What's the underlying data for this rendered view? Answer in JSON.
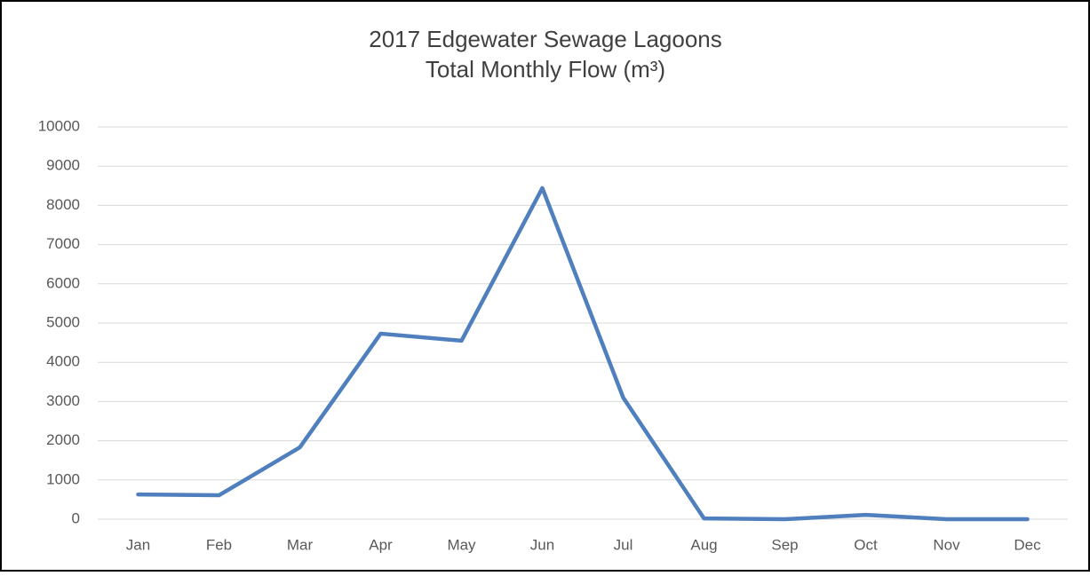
{
  "chart_data": {
    "type": "line",
    "title": [
      "2017 Edgewater Sewage Lagoons",
      "Total Monthly Flow (m³)"
    ],
    "categories": [
      "Jan",
      "Feb",
      "Mar",
      "Apr",
      "May",
      "Jun",
      "Jul",
      "Aug",
      "Sep",
      "Oct",
      "Nov",
      "Dec"
    ],
    "series": [
      {
        "color": "#4f7fbc",
        "values": [
          630,
          610,
          1830,
          4730,
          4550,
          8440,
          3100,
          20,
          0,
          110,
          0,
          0
        ]
      }
    ],
    "ylim": [
      0,
      10000
    ],
    "yticks": [
      0,
      1000,
      2000,
      3000,
      4000,
      5000,
      6000,
      7000,
      8000,
      9000,
      10000
    ],
    "grid": true
  }
}
